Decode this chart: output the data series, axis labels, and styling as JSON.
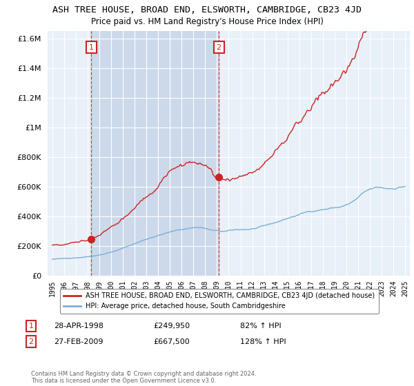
{
  "title": "ASH TREE HOUSE, BROAD END, ELSWORTH, CAMBRIDGE, CB23 4JD",
  "subtitle": "Price paid vs. HM Land Registry's House Price Index (HPI)",
  "hpi_label": "HPI: Average price, detached house, South Cambridgeshire",
  "property_label": "ASH TREE HOUSE, BROAD END, ELSWORTH, CAMBRIDGE, CB23 4JD (detached house)",
  "sale1_date": "28-APR-1998",
  "sale1_price": 249950,
  "sale1_pct": "82% ↑ HPI",
  "sale2_date": "27-FEB-2009",
  "sale2_price": 667500,
  "sale2_pct": "128% ↑ HPI",
  "hpi_color": "#7bafd4",
  "property_color": "#cc2222",
  "sale_marker_color": "#cc2222",
  "sale1_marker_x": 1998.32,
  "sale2_marker_x": 2009.16,
  "sale1_marker_y": 249950,
  "sale2_marker_y": 667500,
  "ylim": [
    0,
    1650000
  ],
  "xlim": [
    1994.6,
    2025.4
  ],
  "plot_bg_color": "#e8f0f8",
  "background_color": "#ffffff",
  "grid_color": "#ffffff",
  "footer": "Contains HM Land Registry data © Crown copyright and database right 2024.\nThis data is licensed under the Open Government Licence v3.0.",
  "shade_color": "#ccd9ea"
}
